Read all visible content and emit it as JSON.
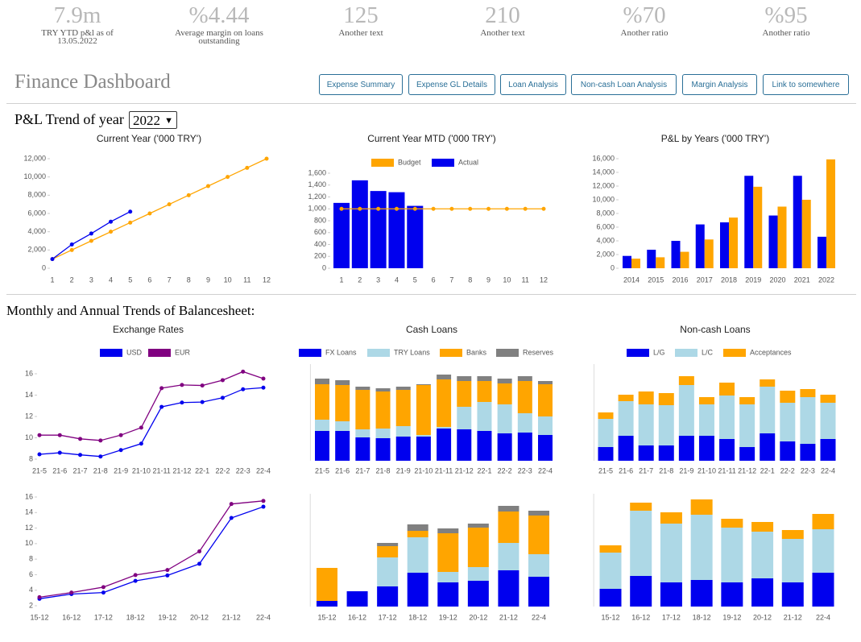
{
  "kpis": [
    {
      "value": "7.9m",
      "label": "TRY YTD p&l as of 13.05.2022"
    },
    {
      "value": "%4.44",
      "label": "Average margin on loans outstanding"
    },
    {
      "value": "125",
      "label": "Another text"
    },
    {
      "value": "210",
      "label": "Another text"
    },
    {
      "value": "%70",
      "label": "Another ratio"
    },
    {
      "value": "%95",
      "label": "Another ratio"
    }
  ],
  "header": {
    "title": "Finance Dashboard",
    "buttons": [
      "Expense Summary",
      "Expense GL Details",
      "Loan Analysis",
      "Non-cash Loan Analysis",
      "Margin Analysis",
      "Link to somewhere"
    ]
  },
  "sections": {
    "pl_title": "P&L Trend of year",
    "year": "2022",
    "balance_title": "Monthly and Annual Trends of Balancesheet:"
  },
  "chart_data": [
    {
      "type": "line",
      "title": "Current Year ('000 TRY')",
      "categories": [
        "1",
        "2",
        "3",
        "4",
        "5",
        "6",
        "7",
        "8",
        "9",
        "10",
        "11",
        "12"
      ],
      "series": [
        {
          "color": "#ffa500",
          "values": [
            1000,
            2000,
            3000,
            4000,
            5000,
            6000,
            7000,
            8000,
            9000,
            10000,
            11000,
            12000
          ]
        },
        {
          "color": "#0000ee",
          "values": [
            1000,
            2600,
            3800,
            5100,
            6200,
            null,
            null,
            null,
            null,
            null,
            null,
            null
          ]
        }
      ],
      "ylim": [
        0,
        12000
      ],
      "yticks": [
        0,
        {
          "value": 2000,
          "label": "2,000"
        },
        {
          "value": 4000,
          "label": "4,000"
        },
        {
          "value": 6000,
          "label": "6,000"
        },
        {
          "value": 8000,
          "label": "8,000"
        },
        {
          "value": 10000,
          "label": "10,000"
        },
        {
          "value": 12000,
          "label": "12,000"
        }
      ]
    },
    {
      "type": "combo",
      "title": "Current Year MTD ('000 TRY')",
      "categories": [
        "1",
        "2",
        "3",
        "4",
        "5",
        "6",
        "7",
        "8",
        "9",
        "10",
        "11",
        "12"
      ],
      "series": [
        {
          "name": "Budget",
          "type": "line",
          "color": "#ffa500",
          "values": [
            1000,
            1000,
            1000,
            1000,
            1000,
            1000,
            1000,
            1000,
            1000,
            1000,
            1000,
            1000
          ]
        },
        {
          "name": "Actual",
          "type": "bar",
          "color": "#0000ee",
          "values": [
            1100,
            1480,
            1300,
            1280,
            1050,
            null,
            null,
            null,
            null,
            null,
            null,
            null
          ]
        }
      ],
      "legend": "top",
      "ylim": [
        0,
        1600
      ],
      "yticks": [
        0,
        200,
        400,
        600,
        800,
        {
          "value": 1000,
          "label": "1,000"
        },
        {
          "value": 1200,
          "label": "1,200"
        },
        {
          "value": 1400,
          "label": "1,400"
        },
        {
          "value": 1600,
          "label": "1,600"
        }
      ]
    },
    {
      "type": "bar",
      "title": "P&L by Years ('000 TRY')",
      "categories": [
        "2014",
        "2015",
        "2016",
        "2017",
        "2018",
        "2019",
        "2020",
        "2021",
        "2022"
      ],
      "series": [
        {
          "color": "#0000ee",
          "values": [
            1800,
            2700,
            4000,
            6400,
            6700,
            13500,
            7700,
            13500,
            4600
          ]
        },
        {
          "color": "#ffa500",
          "values": [
            1400,
            1600,
            2400,
            4200,
            7400,
            11900,
            9000,
            10000,
            15900
          ]
        }
      ],
      "ylim": [
        0,
        16000
      ],
      "yticks": [
        0,
        {
          "value": 2000,
          "label": "2,000"
        },
        {
          "value": 4000,
          "label": "4,000"
        },
        {
          "value": 6000,
          "label": "6,000"
        },
        {
          "value": 8000,
          "label": "8,000"
        },
        {
          "value": 10000,
          "label": "10,000"
        },
        {
          "value": 12000,
          "label": "12,000"
        },
        {
          "value": 14000,
          "label": "14,000"
        },
        {
          "value": 16000,
          "label": "16,000"
        }
      ]
    },
    {
      "type": "line",
      "title": "Exchange Rates",
      "categories": [
        "21-5",
        "21-6",
        "21-7",
        "21-8",
        "21-9",
        "21-10",
        "21-11",
        "21-12",
        "22-1",
        "22-2",
        "22-3",
        "22-4"
      ],
      "series": [
        {
          "name": "USD",
          "color": "#0000ee",
          "values": [
            8.45,
            8.6,
            8.4,
            8.25,
            8.85,
            9.45,
            12.9,
            13.3,
            13.35,
            13.75,
            14.55,
            14.7
          ]
        },
        {
          "name": "EUR",
          "color": "#800080",
          "values": [
            10.25,
            10.25,
            9.9,
            9.75,
            10.25,
            10.95,
            14.65,
            14.95,
            14.9,
            15.4,
            16.2,
            15.55
          ]
        }
      ],
      "legend": "top",
      "ylim": [
        8,
        16
      ],
      "yticks": [
        8,
        10,
        12,
        14,
        16
      ]
    },
    {
      "type": "stacked",
      "title": "Cash Loans",
      "categories": [
        "21-5",
        "21-6",
        "21-7",
        "21-8",
        "21-9",
        "21-10",
        "21-11",
        "21-12",
        "22-1",
        "22-2",
        "22-3",
        "22-4"
      ],
      "series": [
        {
          "name": "FX Loans",
          "color": "#0000ee",
          "values": [
            37,
            37,
            29,
            28,
            30,
            30,
            40,
            39,
            37,
            34,
            35,
            32
          ]
        },
        {
          "name": "TRY Loans",
          "color": "#add8e6",
          "values": [
            14,
            12,
            10,
            12,
            13,
            2,
            2,
            28,
            36,
            36,
            24,
            23
          ]
        },
        {
          "name": "Banks",
          "color": "#ffa500",
          "values": [
            44,
            45,
            49,
            46,
            45,
            62,
            59,
            32,
            26,
            26,
            40,
            40
          ]
        },
        {
          "name": "Reserves",
          "color": "#808080",
          "values": [
            7,
            6,
            4,
            4,
            4,
            1,
            6,
            6,
            6,
            6,
            6,
            4
          ]
        }
      ],
      "legend": "top",
      "ylim": [
        0,
        120
      ]
    },
    {
      "type": "stacked",
      "title": "Non-cash Loans",
      "categories": [
        "21-5",
        "21-6",
        "21-7",
        "21-8",
        "21-9",
        "21-10",
        "21-11",
        "21-12",
        "22-1",
        "22-2",
        "22-3",
        "22-4"
      ],
      "series": [
        {
          "name": "L/G",
          "color": "#0000ee",
          "values": [
            17,
            31,
            19,
            19,
            31,
            31,
            27,
            17,
            34,
            24,
            21,
            27
          ]
        },
        {
          "name": "L/C",
          "color": "#add8e6",
          "values": [
            35,
            43,
            51,
            50,
            63,
            39,
            54,
            53,
            58,
            48,
            58,
            45
          ]
        },
        {
          "name": "Acceptances",
          "color": "#ffa500",
          "values": [
            8,
            8,
            16,
            15,
            11,
            9,
            16,
            9,
            9,
            15,
            10,
            10
          ]
        }
      ],
      "legend": "top",
      "ylim": [
        0,
        120
      ]
    },
    {
      "type": "line",
      "categories": [
        "15-12",
        "16-12",
        "17-12",
        "18-12",
        "19-12",
        "20-12",
        "21-12",
        "22-4"
      ],
      "series": [
        {
          "color": "#0000ee",
          "values": [
            2.9,
            3.5,
            3.7,
            5.2,
            5.9,
            7.4,
            13.3,
            14.75
          ]
        },
        {
          "color": "#800080",
          "values": [
            3.1,
            3.7,
            4.4,
            5.95,
            6.6,
            9.0,
            15.1,
            15.5
          ]
        }
      ],
      "ylim": [
        2,
        16
      ],
      "yticks": [
        2,
        4,
        6,
        8,
        10,
        12,
        14,
        16
      ]
    },
    {
      "type": "stacked",
      "categories": [
        "15-12",
        "16-12",
        "17-12",
        "18-12",
        "19-12",
        "20-12",
        "21-12",
        "22-4"
      ],
      "series": [
        {
          "color": "#0000ee",
          "values": [
            7,
            19,
            25,
            42,
            30,
            32,
            45,
            37
          ]
        },
        {
          "color": "#add8e6",
          "values": [
            0,
            0,
            36,
            44,
            13,
            17,
            34,
            28
          ]
        },
        {
          "color": "#ffa500",
          "values": [
            41,
            0,
            14,
            8,
            48,
            49,
            39,
            48
          ]
        },
        {
          "color": "#808080",
          "values": [
            0,
            0,
            4,
            8,
            6,
            5,
            7,
            6
          ]
        }
      ],
      "ylim": [
        0,
        140
      ]
    },
    {
      "type": "stacked",
      "categories": [
        "15-12",
        "16-12",
        "17-12",
        "18-12",
        "19-12",
        "20-12",
        "21-12",
        "22-4"
      ],
      "series": [
        {
          "color": "#0000ee",
          "values": [
            22,
            38,
            30,
            33,
            30,
            35,
            30,
            42
          ]
        },
        {
          "color": "#add8e6",
          "values": [
            45,
            81,
            73,
            81,
            68,
            58,
            54,
            54
          ]
        },
        {
          "color": "#ffa500",
          "values": [
            9,
            10,
            14,
            19,
            11,
            12,
            11,
            19
          ]
        }
      ],
      "ylim": [
        0,
        140
      ]
    }
  ]
}
